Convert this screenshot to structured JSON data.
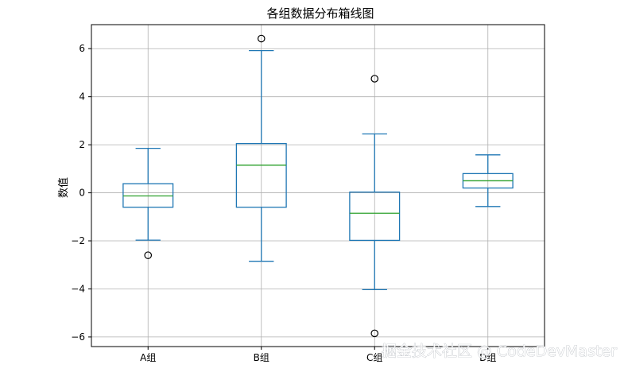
{
  "chart_data": {
    "type": "box",
    "title": "各组数据分布箱线图",
    "ylabel": "数值",
    "xlabel": "",
    "ylim": [
      -6.4,
      7.0
    ],
    "yticks": [
      -6,
      -4,
      -2,
      0,
      2,
      4,
      6
    ],
    "grid": true,
    "categories": [
      "A组",
      "B组",
      "C组",
      "D组"
    ],
    "boxes": [
      {
        "category": "A组",
        "whisker_low": -1.97,
        "q1": -0.6,
        "median": -0.13,
        "q3": 0.38,
        "whisker_high": 1.85,
        "outliers": [
          -2.6
        ]
      },
      {
        "category": "B组",
        "whisker_low": -2.85,
        "q1": -0.6,
        "median": 1.15,
        "q3": 2.05,
        "whisker_high": 5.92,
        "outliers": [
          6.42
        ]
      },
      {
        "category": "C组",
        "whisker_low": -4.03,
        "q1": -1.98,
        "median": -0.85,
        "q3": 0.03,
        "whisker_high": 2.45,
        "outliers": [
          4.75,
          -5.85
        ]
      },
      {
        "category": "D组",
        "whisker_low": -0.57,
        "q1": 0.2,
        "median": 0.5,
        "q3": 0.8,
        "whisker_high": 1.58,
        "outliers": []
      }
    ],
    "colors": {
      "box": "#1f77b4",
      "median": "#2ca02c",
      "grid": "#b0b0b0",
      "outlier": "#000000"
    }
  },
  "watermark": "掘金技术社区 @ CodeDevMaster"
}
